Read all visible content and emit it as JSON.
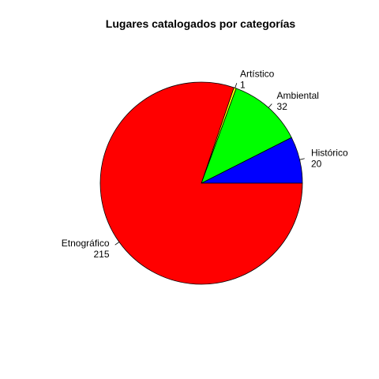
{
  "chart_data": {
    "type": "pie",
    "title": "Lugares catalogados por categorías",
    "slices": [
      {
        "label": "Histórico",
        "value": 20,
        "value_text": "20",
        "color": "#0000ff"
      },
      {
        "label": "Ambiental",
        "value": 32,
        "value_text": "32",
        "color": "#00ff00"
      },
      {
        "label": "Artístico",
        "value": 1,
        "value_text": "1",
        "color": "#ffff00"
      },
      {
        "label": "Etnográfico",
        "value": 215,
        "value_text": "215",
        "color": "#ff0000"
      }
    ],
    "start_angle_deg": 0,
    "direction": "counterclockwise",
    "legend": "none"
  }
}
